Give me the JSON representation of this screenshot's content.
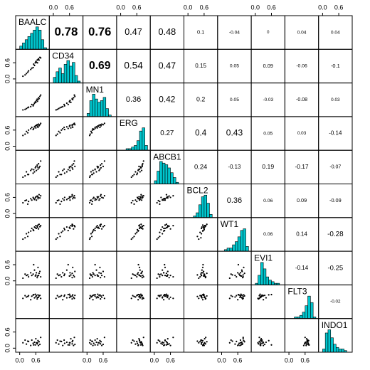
{
  "chart_data": {
    "type": "pairs",
    "variables": [
      "BAALC",
      "CD34",
      "MN1",
      "ERG",
      "ABCB1",
      "BCL2",
      "WT1",
      "EVI1",
      "FLT3",
      "INDO1"
    ],
    "correlations": [
      [
        0.78,
        0.76,
        0.47,
        0.48,
        0.1,
        -0.04,
        0,
        0.04,
        0.04
      ],
      [
        0.69,
        0.54,
        0.47,
        0.15,
        0.05,
        0.09,
        -0.06,
        -0.1
      ],
      [
        0.36,
        0.42,
        0.2,
        0.05,
        -0.03,
        -0.08,
        0.03
      ],
      [
        0.27,
        0.4,
        0.43,
        0.05,
        0.03,
        -0.14
      ],
      [
        0.24,
        -0.13,
        0.19,
        -0.17,
        -0.07
      ],
      [
        0.36,
        0.06,
        0.09,
        -0.09
      ],
      [
        0.06,
        0.14,
        -0.28
      ],
      [
        -0.14,
        -0.25
      ],
      [
        -0.02
      ]
    ],
    "lim": [
      -0.15,
      1.1
    ],
    "ticks": [
      {
        "value": 0,
        "label": "0.0"
      },
      {
        "value": 0.6,
        "label": "0.6"
      }
    ],
    "bins": [
      0,
      0.1,
      0.2,
      0.3,
      0.4,
      0.5,
      0.6,
      0.7,
      0.8,
      0.9,
      1.0
    ],
    "histograms": [
      [
        2,
        4,
        6,
        8,
        10,
        12,
        14,
        12,
        6,
        1
      ],
      [
        3,
        6,
        8,
        5,
        10,
        12,
        9,
        11,
        4,
        1
      ],
      [
        2,
        10,
        14,
        11,
        9,
        10,
        12,
        5,
        1,
        0
      ],
      [
        0,
        0,
        1,
        1,
        2,
        3,
        6,
        12,
        14,
        3
      ],
      [
        2,
        8,
        14,
        13,
        12,
        10,
        7,
        4,
        1,
        0
      ],
      [
        0,
        0,
        1,
        3,
        8,
        13,
        14,
        9,
        2,
        0
      ],
      [
        0,
        1,
        2,
        2,
        4,
        6,
        9,
        13,
        14,
        3
      ],
      [
        1,
        6,
        14,
        10,
        5,
        3,
        2,
        1,
        1,
        0
      ],
      [
        0,
        0,
        1,
        1,
        2,
        4,
        8,
        14,
        10,
        1
      ],
      [
        2,
        12,
        14,
        9,
        5,
        3,
        2,
        2,
        1,
        0
      ]
    ],
    "observations": [
      [
        0.12,
        0.25,
        0.33,
        0.41,
        0.45,
        0.5,
        0.55,
        0.58,
        0.6,
        0.62,
        0.65,
        0.68,
        0.7,
        0.72,
        0.75,
        0.78,
        0.3,
        0.52,
        0.66,
        0.2
      ],
      [
        0.1,
        0.2,
        0.3,
        0.35,
        0.4,
        0.42,
        0.5,
        0.6,
        0.65,
        0.62,
        0.7,
        0.72,
        0.75,
        0.7,
        0.8,
        0.78,
        0.25,
        0.55,
        0.6,
        0.15
      ],
      [
        0.1,
        0.15,
        0.2,
        0.22,
        0.3,
        0.25,
        0.35,
        0.4,
        0.38,
        0.45,
        0.5,
        0.48,
        0.55,
        0.52,
        0.6,
        0.65,
        0.18,
        0.3,
        0.42,
        0.12
      ],
      [
        0.4,
        0.55,
        0.6,
        0.65,
        0.7,
        0.62,
        0.72,
        0.75,
        0.68,
        0.78,
        0.8,
        0.7,
        0.82,
        0.76,
        0.8,
        0.85,
        0.5,
        0.66,
        0.74,
        0.45
      ],
      [
        0.1,
        0.3,
        0.2,
        0.35,
        0.4,
        0.25,
        0.3,
        0.45,
        0.5,
        0.35,
        0.55,
        0.4,
        0.6,
        0.45,
        0.5,
        0.7,
        0.2,
        0.38,
        0.48,
        0.15
      ],
      [
        0.4,
        0.5,
        0.45,
        0.55,
        0.5,
        0.6,
        0.52,
        0.58,
        0.62,
        0.5,
        0.65,
        0.55,
        0.6,
        0.7,
        0.58,
        0.66,
        0.35,
        0.56,
        0.62,
        0.48
      ],
      [
        0.3,
        0.5,
        0.55,
        0.6,
        0.7,
        0.65,
        0.75,
        0.72,
        0.8,
        0.7,
        0.78,
        0.82,
        0.68,
        0.85,
        0.76,
        0.8,
        0.4,
        0.62,
        0.74,
        0.35
      ],
      [
        0.1,
        0.2,
        0.15,
        0.3,
        0.2,
        0.25,
        0.4,
        0.18,
        0.22,
        0.3,
        0.12,
        0.5,
        0.2,
        0.28,
        0.35,
        0.15,
        0.22,
        0.6,
        0.18,
        0.25
      ],
      [
        0.6,
        0.65,
        0.7,
        0.55,
        0.68,
        0.72,
        0.62,
        0.75,
        0.66,
        0.7,
        0.58,
        0.73,
        0.64,
        0.69,
        0.71,
        0.6,
        0.67,
        0.74,
        0.63,
        0.7
      ],
      [
        0.2,
        0.15,
        0.25,
        0.1,
        0.3,
        0.18,
        0.22,
        0.12,
        0.35,
        0.2,
        0.16,
        0.28,
        0.1,
        0.24,
        0.14,
        0.4,
        0.26,
        0.12,
        0.2,
        0.3
      ]
    ],
    "hist_color": "#00c5cd",
    "point_color": "#000000"
  }
}
